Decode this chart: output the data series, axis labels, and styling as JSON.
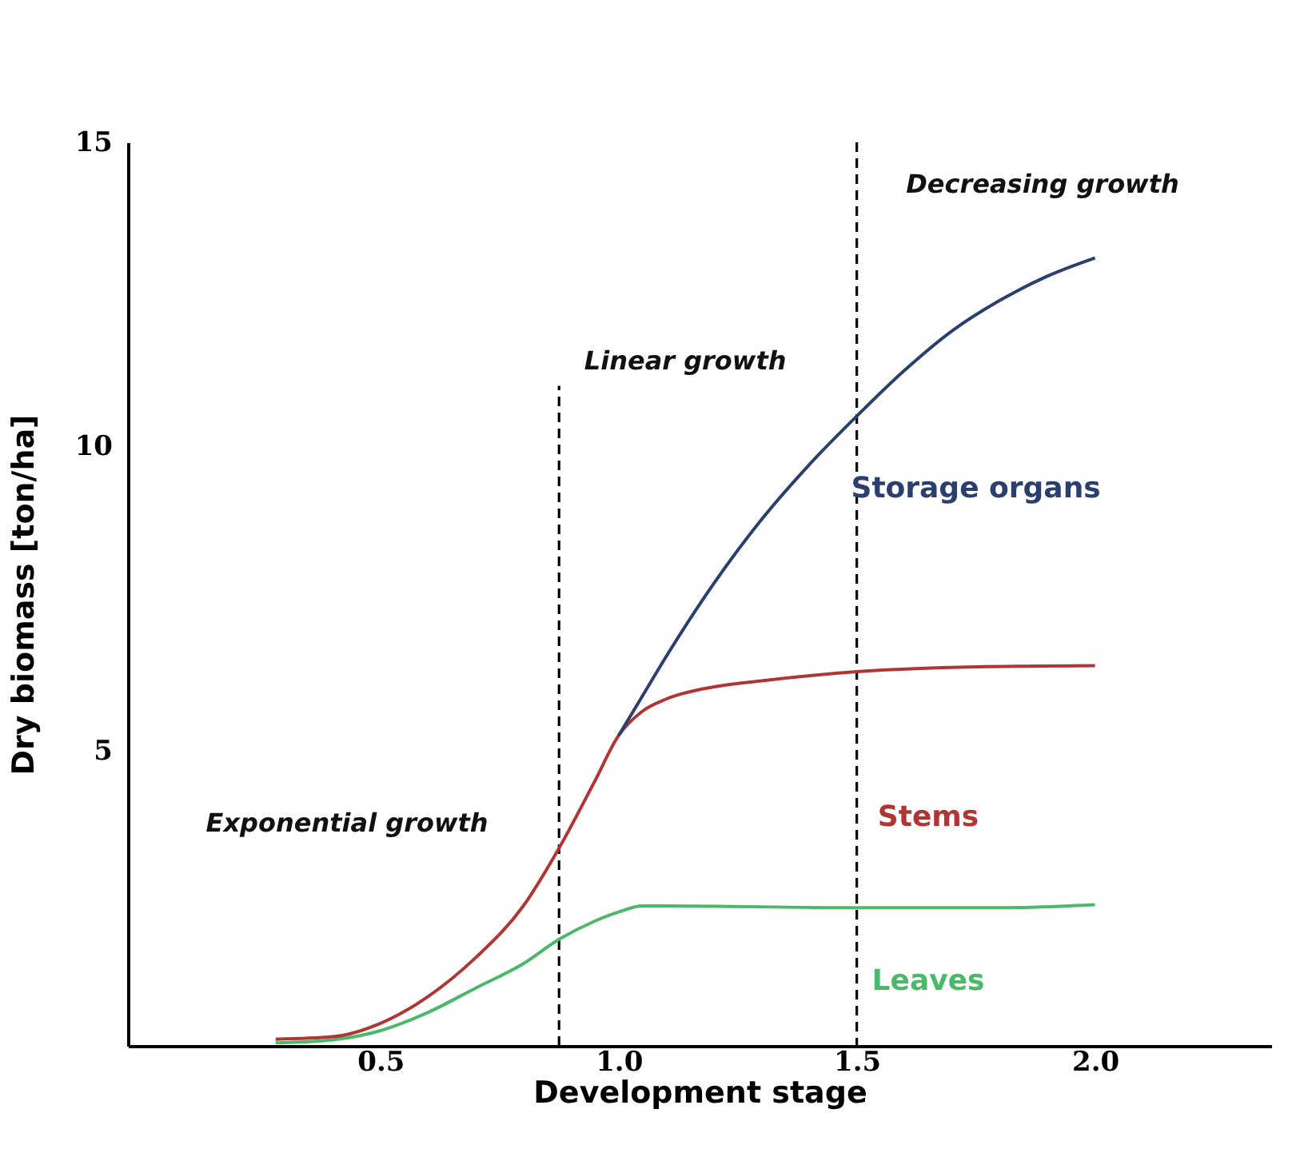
{
  "chart_data": {
    "type": "line",
    "xlabel": "Development stage",
    "ylabel": "Dry biomass [ton/ha]",
    "xlim": [
      -0.03,
      2.37
    ],
    "ylim": [
      0.15,
      15
    ],
    "xticks": [
      0.5,
      {
        "value": 1,
        "label": "1.0"
      },
      1.5,
      {
        "value": 2,
        "label": "2.0"
      }
    ],
    "yticks": [
      5,
      10,
      15
    ],
    "marker": "none",
    "ref_lines": [
      {
        "axis": "x",
        "value": 1.5,
        "label": null,
        "color": "#000000",
        "line_style": "dashed"
      }
    ],
    "series": [
      {
        "name": "Storage organs",
        "color": "#2b3f6f",
        "x": [
          1.0,
          1.05,
          1.1,
          1.2,
          1.3,
          1.4,
          1.5,
          1.6,
          1.7,
          1.8,
          1.9,
          2.0
        ],
        "values": [
          5.25,
          5.9,
          6.55,
          7.75,
          8.8,
          9.7,
          10.5,
          11.25,
          11.9,
          12.4,
          12.8,
          13.1
        ]
      },
      {
        "name": "Stems",
        "color": "#b03535",
        "x": [
          0.28,
          0.4,
          0.5,
          0.6,
          0.7,
          0.8,
          0.875,
          0.95,
          1.0,
          1.05,
          1.1,
          1.2,
          1.3,
          1.5,
          1.75,
          2.0
        ],
        "values": [
          0.26,
          0.3,
          0.52,
          0.96,
          1.6,
          2.45,
          3.4,
          4.5,
          5.25,
          5.65,
          5.85,
          6.05,
          6.15,
          6.3,
          6.38,
          6.4
        ]
      },
      {
        "name": "Leaves",
        "color": "#4cb86a",
        "x": [
          0.28,
          0.4,
          0.5,
          0.6,
          0.7,
          0.8,
          0.875,
          0.95,
          1.0,
          1.05,
          1.1,
          1.5,
          1.8,
          2.0
        ],
        "values": [
          0.2,
          0.25,
          0.4,
          0.7,
          1.1,
          1.5,
          1.9,
          2.2,
          2.35,
          2.45,
          2.45,
          2.42,
          2.42,
          2.47
        ]
      },
      {
        "color": "#000000",
        "line_style": "dashed",
        "x": [
          0.875,
          0.875
        ],
        "values": [
          0.15,
          11
        ]
      }
    ],
    "annotations": [
      "Exponential growth",
      "Linear growth",
      "Decreasing growth"
    ]
  }
}
